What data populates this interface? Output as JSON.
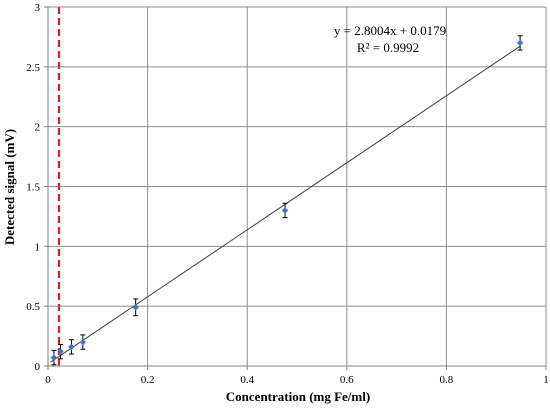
{
  "chart_data": {
    "type": "scatter",
    "xlabel": "Concentration (mg Fe/ml)",
    "ylabel": "Detected signal (mV)",
    "xlim": [
      0,
      1
    ],
    "ylim": [
      0,
      3
    ],
    "x_ticks": [
      0,
      0.2,
      0.4,
      0.6,
      0.8,
      1
    ],
    "x_tick_labels": [
      "0",
      "0.2",
      "0.4",
      "0.6",
      "0.8",
      "1"
    ],
    "y_ticks": [
      0,
      0.5,
      1,
      1.5,
      2,
      2.5,
      3
    ],
    "y_tick_labels": [
      "0",
      "0.5",
      "1",
      "1.5",
      "2",
      "2.5",
      "3"
    ],
    "grid": true,
    "series": [
      {
        "points": [
          {
            "x": 0.012,
            "y": 0.07,
            "err": 0.06
          },
          {
            "x": 0.025,
            "y": 0.12,
            "err": 0.06
          },
          {
            "x": 0.047,
            "y": 0.16,
            "err": 0.06
          },
          {
            "x": 0.07,
            "y": 0.2,
            "err": 0.06
          },
          {
            "x": 0.176,
            "y": 0.49,
            "err": 0.07
          },
          {
            "x": 0.476,
            "y": 1.3,
            "err": 0.06
          },
          {
            "x": 0.948,
            "y": 2.7,
            "err": 0.06
          }
        ],
        "color": "#4472c4"
      }
    ],
    "trendline": {
      "slope": 2.8004,
      "intercept": 0.0179,
      "x_range": [
        0.005,
        0.948
      ],
      "color": "#404040"
    },
    "reference_line": {
      "x": 0.022,
      "color": "#e02020",
      "style": "dashed"
    },
    "annotations": [
      "y = 2.8004x + 0.0179",
      "R² = 0.9992"
    ]
  }
}
